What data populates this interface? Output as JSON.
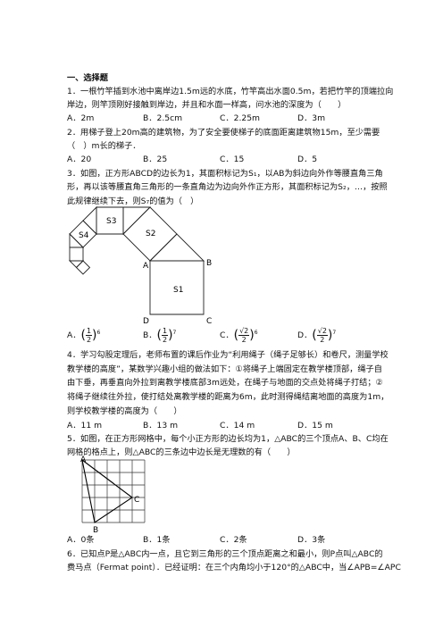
{
  "section_title": "一、选择题",
  "questions": [
    {
      "lines": [
        "1．一根竹竿插到水池中离岸边1.5m远的水底，竹竿高出水面0.5m，若把竹竿的顶端拉向",
        "岸边，则竿顶刚好接触到岸边，并且和水面一样高，问水池的深度为（　　）"
      ],
      "options": [
        "A．2m",
        "B．2.5cm",
        "C．2.25m",
        "D．3m"
      ]
    },
    {
      "lines": [
        "2．用梯子登上20m高的建筑物，为了安全要使梯子的底面距离建筑物15m，至少需要",
        "（　）m长的梯子．"
      ],
      "options": [
        "A．20",
        "B．25",
        "C．15",
        "D．5"
      ]
    },
    {
      "lines": [
        "3．如图，正方形ABCD的边长为1，其面积标记为S₁，以AB为斜边向外作等腰直角三角",
        "形，再以该等腰直角三角形的一条直角边为边向外作正方形，其面积标记为S₂，…，按照",
        "此规律继续下去，则S₇的值为（　）"
      ],
      "figure_labels": [
        "S3",
        "S2",
        "S4",
        "A",
        "B",
        "S1",
        "D",
        "C"
      ],
      "options": [
        {
          "letter": "A．",
          "num": "1",
          "den": "2",
          "exp": "6"
        },
        {
          "letter": "B．",
          "num": "1",
          "den": "2",
          "exp": "7"
        },
        {
          "letter": "C．",
          "num": "√2",
          "den": "2",
          "exp": "6"
        },
        {
          "letter": "D．",
          "num": "√2",
          "den": "2",
          "exp": "7"
        }
      ]
    },
    {
      "lines": [
        "4．学习勾股定理后，老师布置的课后作业为“利用绳子（绳子足够长）和卷尺，测量学校",
        "教学楼的高度”，某数学兴趣小组的做法如下：①将绳子上端固定在教学楼顶部，绳子自",
        "由下垂，再垂直向外拉到离教学楼底部3m远处，在绳子与地面的交点处将绳子打结；②",
        "将绳子继续往外拉，使打结处离教学楼的距离为6m，此时测得绳结离地面的高度为1m，",
        "则学校教学楼的高度为（　　）"
      ],
      "options": [
        "A．11 m",
        "B．13 m",
        "C．14 m",
        "D．15 m"
      ]
    },
    {
      "lines": [
        "5．如图，在正方形网格中，每个小正方形的边长均为1，△ABC的三个顶点A、B、C均在",
        "网格的格点上，则△ABC的三条边中边长是无理数的有（　　）"
      ],
      "figure_labels": [
        "A",
        "C",
        "B"
      ],
      "options": [
        "A．0条",
        "B．1条",
        "C．2条",
        "D．3条"
      ]
    },
    {
      "lines": [
        "6．已知点P是△ABC内一点，且它到三角形的三个顶点距离之和最小，则P点叫△ABC的",
        "费马点（Fermat point）．已经证明：在三个内角均小于120°的△ABC中，当∠APB=∠APC"
      ]
    }
  ]
}
